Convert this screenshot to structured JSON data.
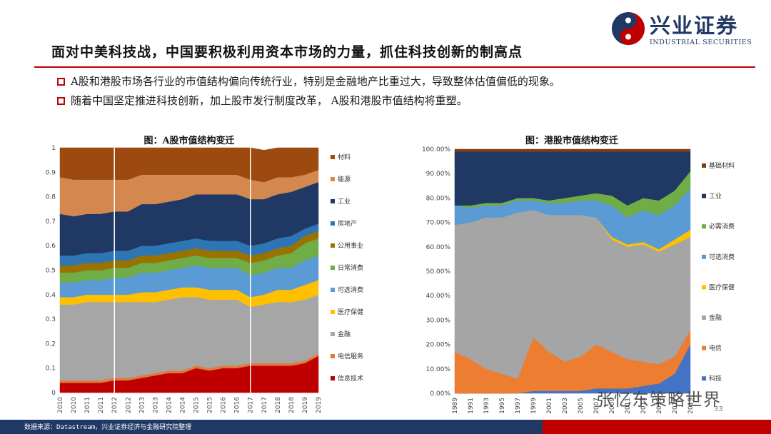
{
  "slide": {
    "title": "面对中美科技战，中国要积极利用资本市场的力量，抓住科技创新的制高点",
    "bullets": [
      "A股和港股市场各行业的市值结构偏向传统行业，特别是金融地产比重过大，导致整体估值偏低的现象。",
      "随着中国坚定推进科技创新，加上股市发行制度改革， A股和港股市值结构将重塑。"
    ],
    "source": "数据来源：Datastream，兴业证券经济与金融研究院整理",
    "page_number": "33",
    "watermark": "张忆东策略世界"
  },
  "logo": {
    "name": "兴业证券",
    "english": "INDUSTRIAL SECURITIES",
    "colors": {
      "red": "#c00000",
      "navy": "#1f3864"
    }
  },
  "chart_data": [
    {
      "id": "a-share",
      "type": "area",
      "stacked": true,
      "title": "图：A股市值结构变迁",
      "x_labels": [
        "2010",
        "2010",
        "2011",
        "2011",
        "2012",
        "2012",
        "2013",
        "2013",
        "2014",
        "2014",
        "2015",
        "2015",
        "2016",
        "2016",
        "2017",
        "2017",
        "2018",
        "2018",
        "2019",
        "2019"
      ],
      "ylim": [
        0,
        1
      ],
      "y_ticks": [
        "0",
        "0.1",
        "0.2",
        "0.3",
        "0.4",
        "0.5",
        "0.6",
        "0.7",
        "0.8",
        "0.9",
        "1"
      ],
      "vertical_markers": [
        "2012",
        "2017"
      ],
      "series": [
        {
          "name": "信息技术",
          "color": "#c00000",
          "values": [
            0.04,
            0.04,
            0.04,
            0.04,
            0.05,
            0.05,
            0.06,
            0.07,
            0.08,
            0.08,
            0.1,
            0.09,
            0.1,
            0.1,
            0.11,
            0.11,
            0.11,
            0.11,
            0.12,
            0.15
          ]
        },
        {
          "name": "电信服务",
          "color": "#e07b39",
          "values": [
            0.01,
            0.01,
            0.01,
            0.01,
            0.01,
            0.01,
            0.01,
            0.01,
            0.01,
            0.01,
            0.01,
            0.01,
            0.01,
            0.01,
            0.01,
            0.01,
            0.01,
            0.01,
            0.01,
            0.01
          ]
        },
        {
          "name": "金融",
          "color": "#a6a6a6",
          "values": [
            0.31,
            0.31,
            0.32,
            0.32,
            0.31,
            0.31,
            0.3,
            0.29,
            0.29,
            0.3,
            0.28,
            0.28,
            0.27,
            0.27,
            0.23,
            0.24,
            0.25,
            0.25,
            0.25,
            0.24
          ]
        },
        {
          "name": "医疗保健",
          "color": "#ffc000",
          "values": [
            0.03,
            0.03,
            0.03,
            0.03,
            0.03,
            0.03,
            0.04,
            0.04,
            0.04,
            0.04,
            0.04,
            0.04,
            0.04,
            0.04,
            0.04,
            0.04,
            0.05,
            0.05,
            0.06,
            0.06
          ]
        },
        {
          "name": "可选消费",
          "color": "#5b9bd5",
          "values": [
            0.06,
            0.06,
            0.06,
            0.06,
            0.07,
            0.07,
            0.08,
            0.08,
            0.08,
            0.08,
            0.09,
            0.09,
            0.09,
            0.09,
            0.09,
            0.09,
            0.09,
            0.09,
            0.1,
            0.1
          ]
        },
        {
          "name": "日常消费",
          "color": "#70ad47",
          "values": [
            0.04,
            0.04,
            0.04,
            0.04,
            0.04,
            0.04,
            0.04,
            0.04,
            0.04,
            0.04,
            0.04,
            0.04,
            0.04,
            0.04,
            0.05,
            0.05,
            0.05,
            0.06,
            0.07,
            0.07
          ]
        },
        {
          "name": "公用事业",
          "color": "#997300",
          "values": [
            0.03,
            0.03,
            0.03,
            0.03,
            0.03,
            0.03,
            0.03,
            0.03,
            0.03,
            0.03,
            0.03,
            0.03,
            0.03,
            0.03,
            0.03,
            0.03,
            0.03,
            0.03,
            0.03,
            0.03
          ]
        },
        {
          "name": "房地产",
          "color": "#2e75b6",
          "values": [
            0.04,
            0.04,
            0.04,
            0.04,
            0.04,
            0.04,
            0.04,
            0.04,
            0.04,
            0.04,
            0.04,
            0.04,
            0.04,
            0.04,
            0.04,
            0.04,
            0.04,
            0.04,
            0.03,
            0.03
          ]
        },
        {
          "name": "工业",
          "color": "#1f3864",
          "values": [
            0.17,
            0.16,
            0.16,
            0.16,
            0.16,
            0.16,
            0.17,
            0.17,
            0.17,
            0.17,
            0.18,
            0.19,
            0.19,
            0.19,
            0.19,
            0.18,
            0.18,
            0.18,
            0.17,
            0.17
          ]
        },
        {
          "name": "能源",
          "color": "#d4874e",
          "values": [
            0.15,
            0.15,
            0.14,
            0.14,
            0.13,
            0.13,
            0.12,
            0.12,
            0.11,
            0.1,
            0.08,
            0.08,
            0.08,
            0.08,
            0.08,
            0.07,
            0.07,
            0.06,
            0.05,
            0.05
          ]
        },
        {
          "name": "材料",
          "color": "#9c4a0f",
          "values": [
            0.12,
            0.13,
            0.13,
            0.13,
            0.13,
            0.13,
            0.11,
            0.11,
            0.11,
            0.11,
            0.11,
            0.11,
            0.11,
            0.11,
            0.13,
            0.13,
            0.12,
            0.12,
            0.11,
            0.09
          ]
        }
      ]
    },
    {
      "id": "hk-share",
      "type": "area",
      "stacked": true,
      "title": "图：港股市值结构变迁",
      "x_labels": [
        "1989",
        "1991",
        "1993",
        "1995",
        "1997",
        "1999",
        "2001",
        "2003",
        "2005",
        "2007",
        "2009",
        "2011",
        "2013",
        "2015",
        "2017",
        "2019"
      ],
      "ylim": [
        0,
        1
      ],
      "y_ticks": [
        "0.00%",
        "10.00%",
        "20.00%",
        "30.00%",
        "40.00%",
        "50.00%",
        "60.00%",
        "70.00%",
        "80.00%",
        "90.00%",
        "100.00%"
      ],
      "series": [
        {
          "name": "科技",
          "color": "#4472c4",
          "values": [
            0.0,
            0.0,
            0.0,
            0.0,
            0.0,
            0.01,
            0.01,
            0.01,
            0.01,
            0.02,
            0.02,
            0.02,
            0.03,
            0.04,
            0.08,
            0.2
          ]
        },
        {
          "name": "电信",
          "color": "#ed7d31",
          "values": [
            0.17,
            0.14,
            0.1,
            0.08,
            0.06,
            0.22,
            0.16,
            0.12,
            0.14,
            0.18,
            0.15,
            0.12,
            0.1,
            0.08,
            0.07,
            0.06
          ]
        },
        {
          "name": "金融",
          "color": "#a5a5a5",
          "values": [
            0.52,
            0.56,
            0.62,
            0.64,
            0.68,
            0.52,
            0.56,
            0.6,
            0.58,
            0.52,
            0.46,
            0.46,
            0.48,
            0.46,
            0.46,
            0.38
          ]
        },
        {
          "name": "医疗保健",
          "color": "#ffc000",
          "values": [
            0.0,
            0.0,
            0.0,
            0.0,
            0.0,
            0.0,
            0.0,
            0.0,
            0.0,
            0.0,
            0.01,
            0.01,
            0.01,
            0.01,
            0.02,
            0.03
          ]
        },
        {
          "name": "可选消费",
          "color": "#5b9bd5",
          "values": [
            0.08,
            0.06,
            0.05,
            0.05,
            0.05,
            0.04,
            0.05,
            0.05,
            0.06,
            0.07,
            0.13,
            0.11,
            0.13,
            0.14,
            0.14,
            0.17
          ]
        },
        {
          "name": "必需消费",
          "color": "#70ad47",
          "values": [
            0.0,
            0.01,
            0.01,
            0.01,
            0.01,
            0.01,
            0.01,
            0.02,
            0.02,
            0.03,
            0.04,
            0.05,
            0.05,
            0.06,
            0.06,
            0.07
          ]
        },
        {
          "name": "工业",
          "color": "#1f3864",
          "values": [
            0.22,
            0.22,
            0.21,
            0.21,
            0.19,
            0.19,
            0.2,
            0.19,
            0.18,
            0.17,
            0.18,
            0.22,
            0.19,
            0.2,
            0.16,
            0.08
          ]
        },
        {
          "name": "基础材料",
          "color": "#843c0c",
          "values": [
            0.01,
            0.01,
            0.01,
            0.01,
            0.01,
            0.01,
            0.01,
            0.01,
            0.01,
            0.01,
            0.01,
            0.01,
            0.01,
            0.01,
            0.01,
            0.01
          ]
        }
      ]
    }
  ]
}
